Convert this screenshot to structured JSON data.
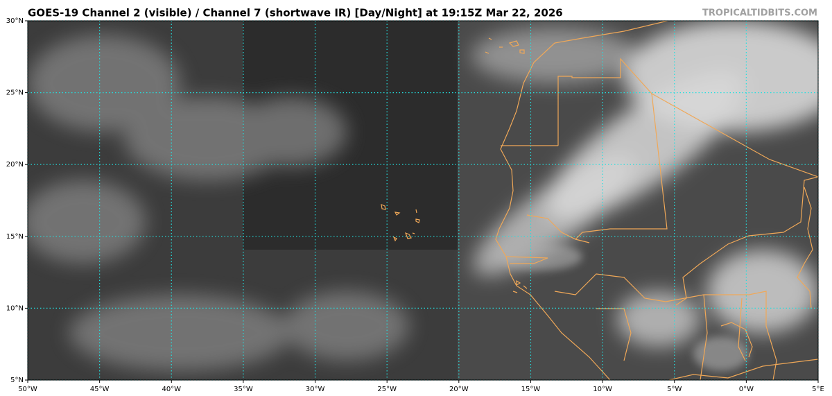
{
  "title": "GOES-19 Channel 2 (visible) / Channel 7 (shortwave IR) [Day/Night] at 19:15Z Mar 22, 2026",
  "credit": "TROPICALTIDBITS.COM",
  "map": {
    "xlim": [
      -50,
      5
    ],
    "ylim": [
      5,
      30
    ],
    "xticks": [
      {
        "value": -50,
        "label": "50°W"
      },
      {
        "value": -45,
        "label": "45°W"
      },
      {
        "value": -40,
        "label": "40°W"
      },
      {
        "value": -35,
        "label": "35°W"
      },
      {
        "value": -30,
        "label": "30°W"
      },
      {
        "value": -25,
        "label": "25°W"
      },
      {
        "value": -20,
        "label": "20°W"
      },
      {
        "value": -15,
        "label": "15°W"
      },
      {
        "value": -10,
        "label": "10°W"
      },
      {
        "value": -5,
        "label": "5°W"
      },
      {
        "value": 0,
        "label": "0°W"
      },
      {
        "value": 5,
        "label": "5°E"
      }
    ],
    "yticks": [
      {
        "value": 5,
        "label": "5°N"
      },
      {
        "value": 10,
        "label": "10°N"
      },
      {
        "value": 15,
        "label": "15°N"
      },
      {
        "value": 20,
        "label": "20°N"
      },
      {
        "value": 25,
        "label": "25°N"
      },
      {
        "value": 30,
        "label": "30°N"
      }
    ],
    "grid": true,
    "grid_color": "#22e0e0"
  }
}
